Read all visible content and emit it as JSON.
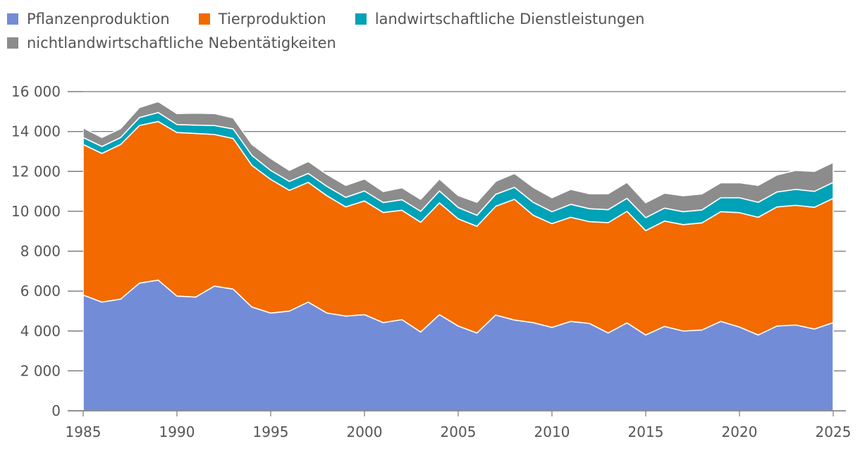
{
  "legend": [
    {
      "label": "Pflanzenproduktion",
      "color": "#738cd8"
    },
    {
      "label": "Tierproduktion",
      "color": "#f26a00"
    },
    {
      "label": "landwirtschaftliche Dienstleistungen",
      "color": "#00a2b8"
    },
    {
      "label": "nichtlandwirtschaftliche Nebentätigkeiten",
      "color": "#8c8c8c"
    }
  ],
  "chart_data": {
    "type": "area",
    "stacked": true,
    "title": "",
    "xlabel": "",
    "ylabel": "",
    "ylim": [
      0,
      16000
    ],
    "xlim": [
      1985,
      2025
    ],
    "grid": true,
    "legend_position": "top-left",
    "x": [
      1985,
      1986,
      1987,
      1988,
      1989,
      1990,
      1991,
      1992,
      1993,
      1994,
      1995,
      1996,
      1997,
      1998,
      1999,
      2000,
      2001,
      2002,
      2003,
      2004,
      2005,
      2006,
      2007,
      2008,
      2009,
      2010,
      2011,
      2012,
      2013,
      2014,
      2015,
      2016,
      2017,
      2018,
      2019,
      2020,
      2021,
      2022,
      2023,
      2024,
      2025
    ],
    "x_ticks": [
      1985,
      1990,
      1995,
      2000,
      2005,
      2010,
      2015,
      2020,
      2025
    ],
    "x_tick_labels": [
      "1985",
      "1990",
      "1995",
      "2000",
      "2005",
      "2010",
      "2015",
      "2020",
      "2025"
    ],
    "y_ticks": [
      0,
      2000,
      4000,
      6000,
      8000,
      10000,
      12000,
      14000,
      16000
    ],
    "y_tick_labels": [
      "0",
      "2 000",
      "4 000",
      "6 000",
      "8 000",
      "10 000",
      "12 000",
      "14 000",
      "16 000"
    ],
    "series": [
      {
        "name": "Pflanzenproduktion",
        "color": "#738cd8",
        "values": [
          5800,
          5450,
          5600,
          6400,
          6550,
          5750,
          5700,
          6250,
          6100,
          5200,
          4900,
          5000,
          5450,
          4900,
          4750,
          4820,
          4420,
          4570,
          3950,
          4820,
          4250,
          3900,
          4800,
          4550,
          4420,
          4180,
          4480,
          4380,
          3900,
          4410,
          3800,
          4230,
          4000,
          4050,
          4480,
          4200,
          3800,
          4250,
          4300,
          4100,
          4420
        ]
      },
      {
        "name": "Tierproduktion",
        "color": "#f26a00",
        "values": [
          7550,
          7450,
          7750,
          7900,
          7950,
          8200,
          8200,
          7600,
          7550,
          7100,
          6700,
          6050,
          6000,
          5880,
          5470,
          5700,
          5520,
          5480,
          5500,
          5600,
          5370,
          5350,
          5450,
          6050,
          5380,
          5200,
          5220,
          5100,
          5530,
          5590,
          5230,
          5280,
          5330,
          5370,
          5500,
          5730,
          5900,
          5970,
          6000,
          6100,
          6230
        ]
      },
      {
        "name": "landwirtschaftliche Dienstleistungen",
        "color": "#00a2b8",
        "values": [
          350,
          350,
          350,
          400,
          450,
          400,
          420,
          450,
          480,
          500,
          450,
          450,
          450,
          470,
          480,
          500,
          500,
          530,
          550,
          600,
          570,
          550,
          600,
          600,
          650,
          600,
          650,
          650,
          650,
          650,
          650,
          650,
          650,
          650,
          700,
          750,
          750,
          750,
          800,
          800,
          800
        ]
      },
      {
        "name": "nichtlandwirtschaftliche Nebentätigkeiten",
        "color": "#8c8c8c",
        "values": [
          480,
          450,
          450,
          500,
          550,
          550,
          600,
          600,
          550,
          550,
          600,
          550,
          600,
          600,
          600,
          600,
          550,
          600,
          600,
          600,
          600,
          650,
          650,
          700,
          750,
          700,
          750,
          750,
          800,
          800,
          750,
          750,
          800,
          800,
          750,
          750,
          850,
          850,
          950,
          1000,
          1000
        ]
      }
    ]
  }
}
